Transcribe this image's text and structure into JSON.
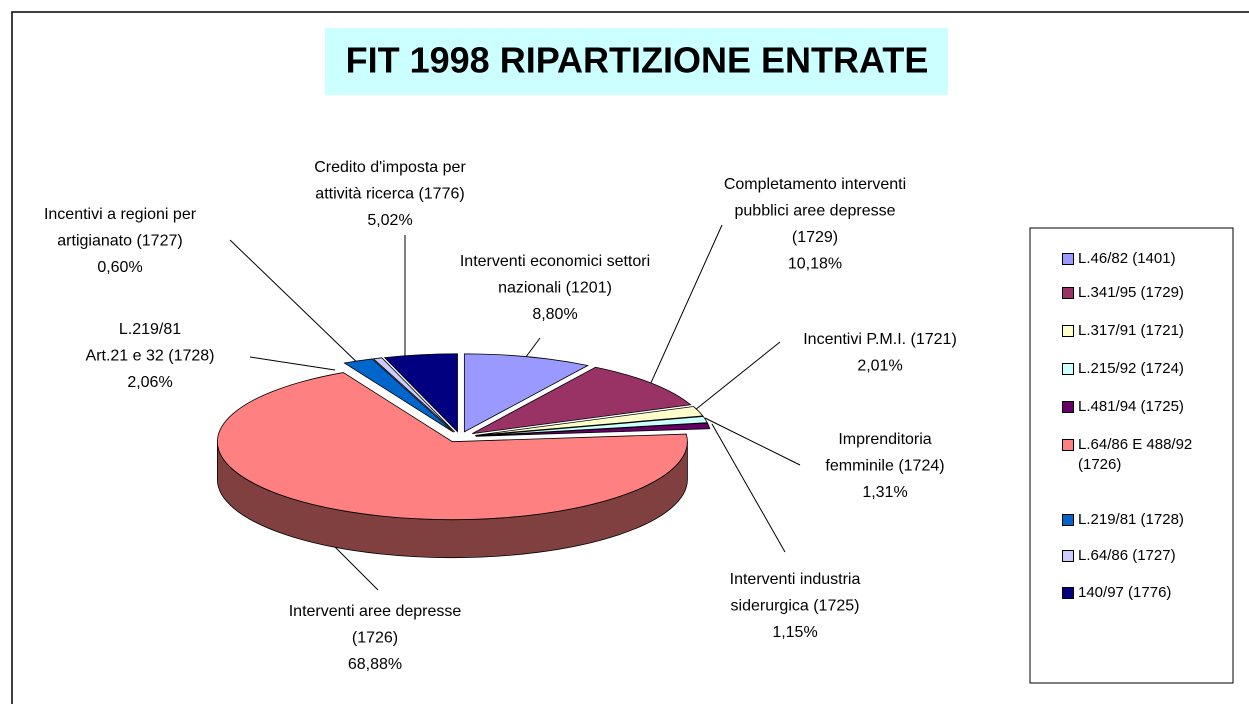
{
  "chart_data": {
    "type": "pie",
    "title": "FIT 1998 RIPARTIZIONE ENTRATE",
    "categories": [
      [
        "Interventi economici settori",
        "nazionali (1201)"
      ],
      [
        "Completamento interventi",
        "pubblici aree depresse",
        "(1729)"
      ],
      [
        "Incentivi P.M.I. (1721)"
      ],
      [
        "Imprenditoria",
        "femminile (1724)"
      ],
      [
        "Interventi industria",
        "siderurgica  (1725)"
      ],
      [
        "Interventi aree depresse",
        "(1726)"
      ],
      [
        "L.219/81",
        "Art.21 e 32 (1728)"
      ],
      [
        "Incentivi a regioni per",
        "artigianato (1727)"
      ],
      [
        "Credito d'imposta per",
        "attività ricerca (1776)"
      ]
    ],
    "legend_labels": [
      "L.46/82 (1401)",
      "L.341/95 (1729)",
      "L.317/91 (1721)",
      "L.215/92 (1724)",
      "L.481/94 (1725)",
      "L.64/86 E 488/92 (1726)",
      "L.219/81 (1728)",
      "L.64/86  (1727)",
      "140/97 (1776)"
    ],
    "values": [
      8.8,
      10.18,
      2.01,
      1.31,
      1.15,
      68.88,
      2.06,
      0.6,
      5.02
    ],
    "value_labels": [
      "8,80%",
      "10,18%",
      "2,01%",
      "1,31%",
      "1,15%",
      "68,88%",
      "2,06%",
      "0,60%",
      "5,02%"
    ],
    "colors": [
      "#9999ff",
      "#993366",
      "#ffffcc",
      "#ccffff",
      "#660066",
      "#ff8080",
      "#0066cc",
      "#ccccff",
      "#000080"
    ]
  }
}
